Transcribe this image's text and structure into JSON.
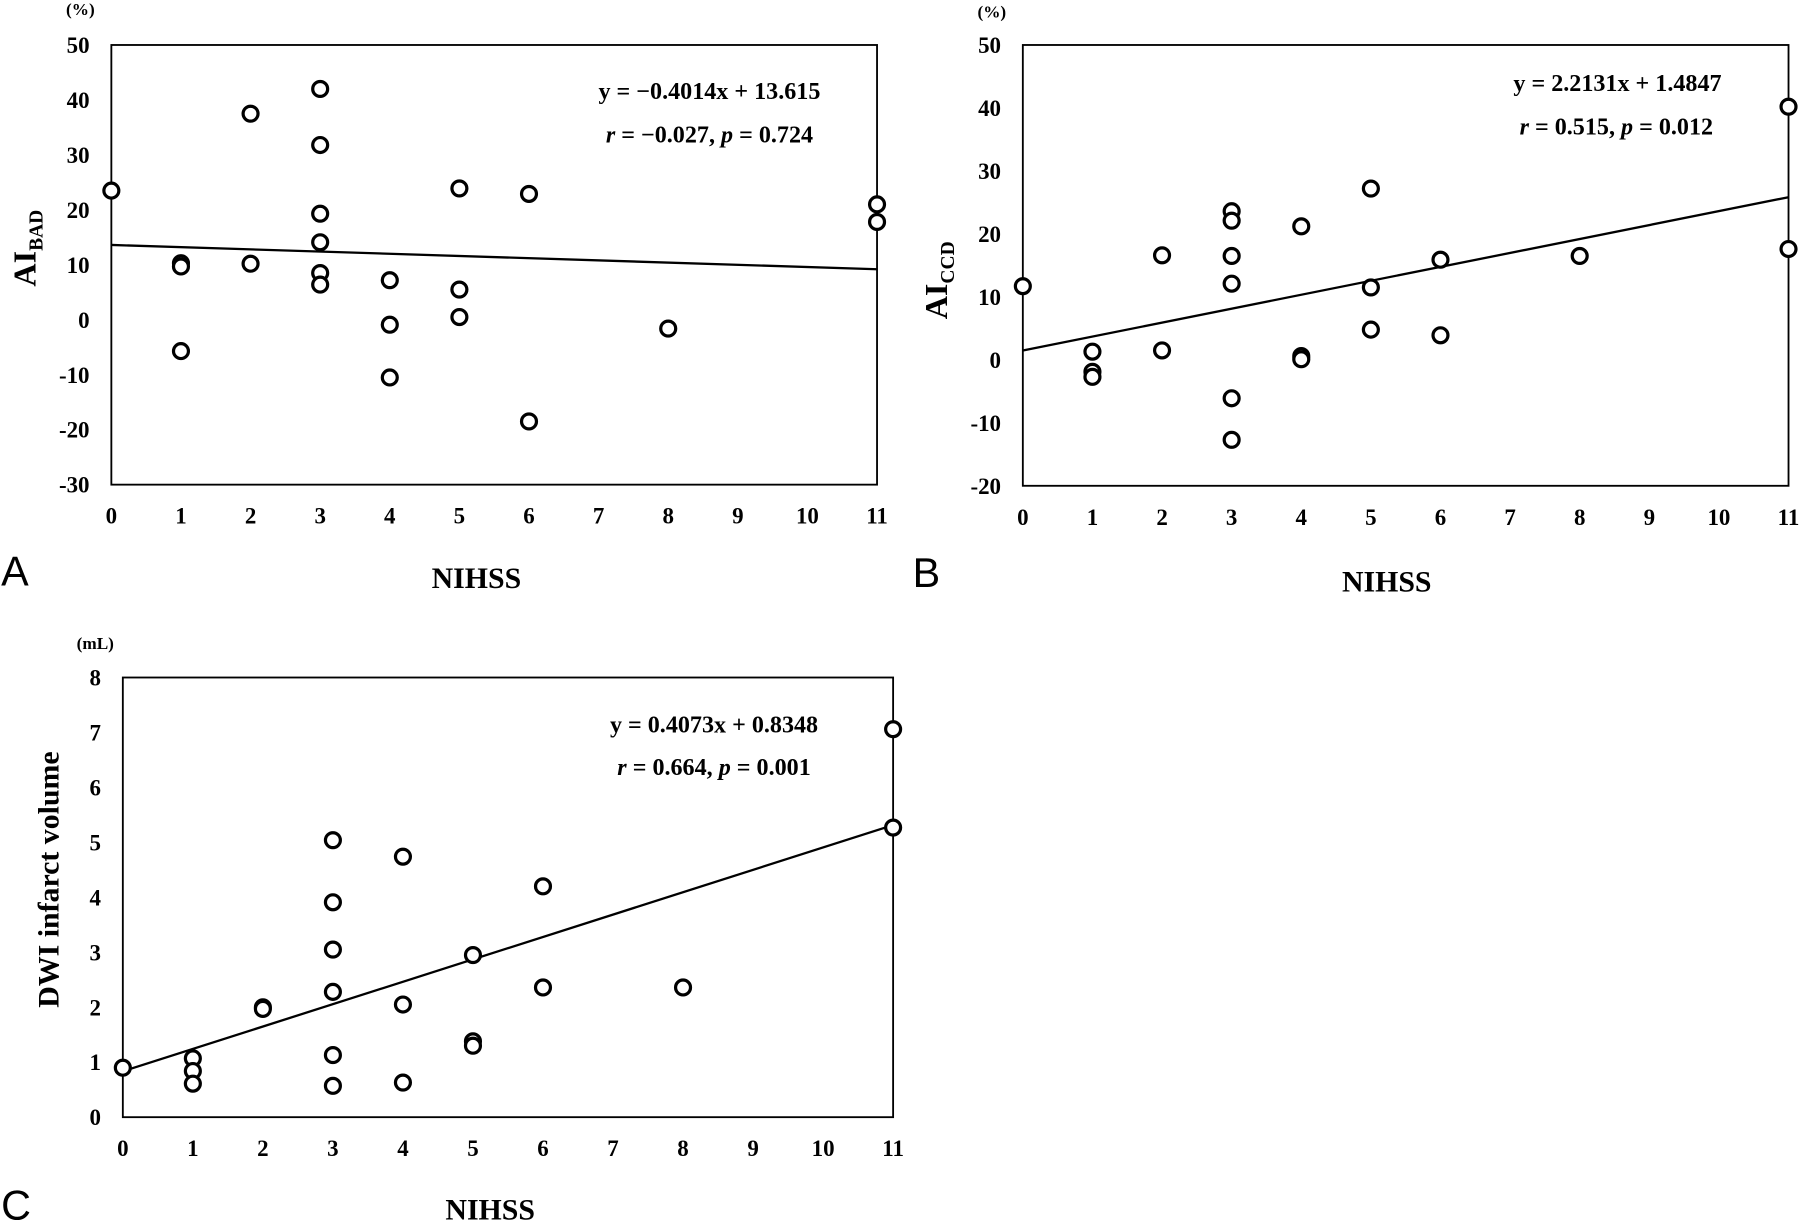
{
  "chart_data": [
    {
      "panel": "A",
      "type": "scatter",
      "unit": "(%)",
      "xlabel": "NIHSS",
      "ylabel": "AI",
      "ylabel_subscript": "BAD",
      "xlim": [
        0,
        11
      ],
      "ylim": [
        -30,
        50
      ],
      "xticks": [
        0,
        1,
        2,
        3,
        4,
        5,
        6,
        7,
        8,
        9,
        10,
        11
      ],
      "yticks": [
        -30,
        -20,
        -10,
        0,
        10,
        20,
        30,
        40,
        50
      ],
      "grid": false,
      "points": [
        [
          0,
          23.5
        ],
        [
          1,
          10.3
        ],
        [
          1,
          9.7
        ],
        [
          1,
          -5.7
        ],
        [
          2,
          37.5
        ],
        [
          2,
          10.2
        ],
        [
          3,
          42.0
        ],
        [
          3,
          31.8
        ],
        [
          3,
          19.3
        ],
        [
          3,
          14.1
        ],
        [
          3,
          8.5
        ],
        [
          3,
          6.4
        ],
        [
          4,
          7.2
        ],
        [
          4,
          -0.9
        ],
        [
          4,
          -10.5
        ],
        [
          5,
          23.9
        ],
        [
          5,
          5.5
        ],
        [
          5,
          0.5
        ],
        [
          6,
          22.9
        ],
        [
          6,
          -18.5
        ],
        [
          8,
          -1.6
        ],
        [
          11,
          21.0
        ],
        [
          11,
          17.8
        ]
      ],
      "fit": {
        "slope": -0.4014,
        "intercept": 13.615
      },
      "equation": "y = −0.4014x + 13.615",
      "stats": {
        "r_symbol": "r",
        "r_value": "= −0.027,",
        "p_symbol": "p",
        "p_value": "= 0.724"
      }
    },
    {
      "panel": "B",
      "type": "scatter",
      "unit": "(%)",
      "xlabel": "NIHSS",
      "ylabel": "AI",
      "ylabel_subscript": "CCD",
      "xlim": [
        0,
        11
      ],
      "ylim": [
        -20,
        50
      ],
      "xticks": [
        0,
        1,
        2,
        3,
        4,
        5,
        6,
        7,
        8,
        9,
        10,
        11
      ],
      "yticks": [
        -20,
        -10,
        0,
        10,
        20,
        30,
        40,
        50
      ],
      "grid": false,
      "points": [
        [
          0,
          11.7
        ],
        [
          1,
          1.3
        ],
        [
          1,
          -1.9
        ],
        [
          1,
          -2.7
        ],
        [
          2,
          16.6
        ],
        [
          2,
          1.5
        ],
        [
          3,
          23.6
        ],
        [
          3,
          22.1
        ],
        [
          3,
          16.5
        ],
        [
          3,
          12.1
        ],
        [
          3,
          -6.1
        ],
        [
          3,
          -12.7
        ],
        [
          4,
          21.2
        ],
        [
          4,
          0.6
        ],
        [
          4,
          0.1
        ],
        [
          5,
          27.2
        ],
        [
          5,
          11.5
        ],
        [
          5,
          4.8
        ],
        [
          6,
          15.9
        ],
        [
          6,
          3.9
        ],
        [
          8,
          16.5
        ],
        [
          11,
          40.2
        ],
        [
          11,
          17.6
        ]
      ],
      "fit": {
        "slope": 2.2131,
        "intercept": 1.4847
      },
      "equation": "y = 2.2131x + 1.4847",
      "stats": {
        "r_symbol": "r",
        "r_value": "= 0.515,",
        "p_symbol": "p",
        "p_value": "= 0.012"
      }
    },
    {
      "panel": "C",
      "type": "scatter",
      "unit": "(mL)",
      "xlabel": "NIHSS",
      "ylabel": "DWI infarct volume",
      "xlim": [
        0,
        11
      ],
      "ylim": [
        0,
        8
      ],
      "xticks": [
        0,
        1,
        2,
        3,
        4,
        5,
        6,
        7,
        8,
        9,
        10,
        11
      ],
      "yticks": [
        0,
        1,
        2,
        3,
        4,
        5,
        6,
        7,
        8
      ],
      "grid": false,
      "points": [
        [
          0,
          0.9
        ],
        [
          1,
          1.07
        ],
        [
          1,
          0.84
        ],
        [
          1,
          0.61
        ],
        [
          2,
          2.0
        ],
        [
          2,
          1.97
        ],
        [
          3,
          5.04
        ],
        [
          3,
          3.91
        ],
        [
          3,
          3.05
        ],
        [
          3,
          2.28
        ],
        [
          3,
          1.13
        ],
        [
          3,
          0.57
        ],
        [
          4,
          4.74
        ],
        [
          4,
          2.05
        ],
        [
          4,
          0.63
        ],
        [
          5,
          2.95
        ],
        [
          5,
          1.38
        ],
        [
          5,
          1.3
        ],
        [
          6,
          4.2
        ],
        [
          6,
          2.36
        ],
        [
          8,
          2.36
        ],
        [
          11,
          7.06
        ],
        [
          11,
          5.27
        ]
      ],
      "fit": {
        "slope": 0.4073,
        "intercept": 0.8348
      },
      "equation": "y = 0.4073x + 0.8348",
      "stats": {
        "r_symbol": "r",
        "r_value": "= 0.664,",
        "p_symbol": "p",
        "p_value": "= 0.001"
      }
    }
  ]
}
